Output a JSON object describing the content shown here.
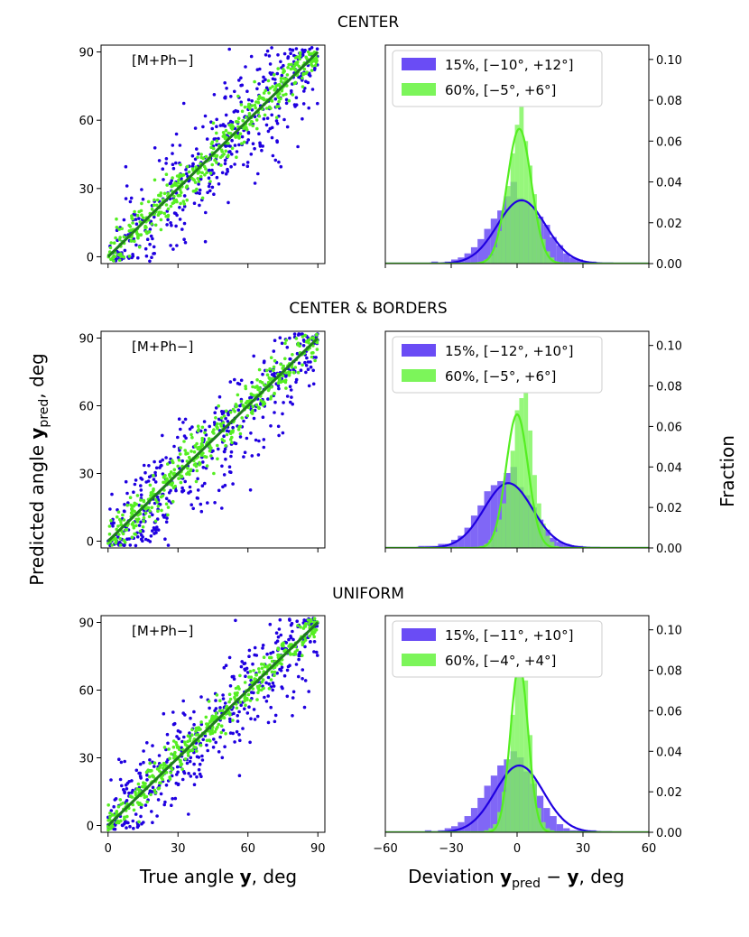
{
  "figure": {
    "ylabel_main": "Predicted angle ",
    "ylabel_bold": "y",
    "ylabel_sub": "pred",
    "ylabel_tail": ", deg",
    "ylabel_right": "Fraction",
    "xlabel_left_main": "True angle ",
    "xlabel_left_bold": "y",
    "xlabel_left_tail": ", deg",
    "xlabel_right_main": "Deviation ",
    "xlabel_right_bold1": "y",
    "xlabel_right_sub": "pred",
    "xlabel_right_minus": " − ",
    "xlabel_right_bold2": "y",
    "xlabel_right_tail": ", deg"
  },
  "colors": {
    "blue": "#1f00e0",
    "green": "#55ee22",
    "diag": "#1f7a1f",
    "hist_blue": "#6a4cf5",
    "hist_green": "#7cf55a"
  },
  "chart_data": [
    {
      "type": "scatter",
      "row_title": "CENTER",
      "annotation": "[M+Ph−]",
      "xlim": [
        -3,
        93
      ],
      "ylim": [
        -3,
        93
      ],
      "xticks": [
        0,
        30,
        60,
        90
      ],
      "yticks": [
        0,
        30,
        60,
        90
      ],
      "series": [
        {
          "color": "blue",
          "spread": 13,
          "seed": 11
        },
        {
          "color": "green",
          "spread": 5.5,
          "seed": 12
        }
      ],
      "diagonal": [
        [
          0,
          0
        ],
        [
          90,
          90
        ]
      ]
    },
    {
      "type": "bar",
      "xlim": [
        -60,
        60
      ],
      "ylim": [
        0,
        0.107
      ],
      "xticks": [
        -60,
        -30,
        0,
        30,
        60
      ],
      "yticks": [
        0.0,
        0.02,
        0.04,
        0.06,
        0.08,
        0.1
      ],
      "legend": [
        "15%, [−10°, +12°]",
        "60%, [−5°, +6°]"
      ],
      "series": [
        {
          "color": "blue",
          "mean": 2,
          "sigma": 11,
          "peak": 0.031,
          "bin_width": 3,
          "bins_start": -39,
          "values": [
            0.001,
            0,
            0.001,
            0.002,
            0.003,
            0.005,
            0.008,
            0.012,
            0.017,
            0.022,
            0.026,
            0.033,
            0.04,
            0.032,
            0.03,
            0.027,
            0.023,
            0.019,
            0.013,
            0.009,
            0.005,
            0.003,
            0.002,
            0.001,
            0.001,
            0
          ]
        },
        {
          "color": "green",
          "mean": 1,
          "sigma": 5.5,
          "peak": 0.066,
          "bin_width": 2,
          "bins_start": -17,
          "values": [
            0.001,
            0.002,
            0.004,
            0.008,
            0.016,
            0.026,
            0.038,
            0.054,
            0.068,
            0.077,
            0.06,
            0.048,
            0.034,
            0.022,
            0.012,
            0.006,
            0.003,
            0.001
          ]
        }
      ]
    },
    {
      "type": "scatter",
      "row_title": "CENTER & BORDERS",
      "annotation": "[M+Ph−]",
      "xlim": [
        -3,
        93
      ],
      "ylim": [
        -3,
        93
      ],
      "xticks": [
        0,
        30,
        60,
        90
      ],
      "yticks": [
        0,
        30,
        60,
        90
      ],
      "series": [
        {
          "color": "blue",
          "spread": 14,
          "seed": 21,
          "bias": -5
        },
        {
          "color": "green",
          "spread": 5.5,
          "seed": 22
        }
      ],
      "diagonal": [
        [
          0,
          0
        ],
        [
          90,
          90
        ]
      ]
    },
    {
      "type": "bar",
      "xlim": [
        -60,
        60
      ],
      "ylim": [
        0,
        0.107
      ],
      "xticks": [
        -60,
        -30,
        0,
        30,
        60
      ],
      "yticks": [
        0.0,
        0.02,
        0.04,
        0.06,
        0.08,
        0.1
      ],
      "legend": [
        "15%, [−12°, +10°]",
        "60%, [−5°, +6°]"
      ],
      "series": [
        {
          "color": "blue",
          "mean": -4,
          "sigma": 11,
          "peak": 0.032,
          "bin_width": 3,
          "bins_start": -45,
          "values": [
            0.001,
            0.001,
            0.001,
            0.002,
            0.002,
            0.004,
            0.006,
            0.01,
            0.016,
            0.021,
            0.028,
            0.031,
            0.033,
            0.037,
            0.04,
            0.03,
            0.026,
            0.02,
            0.014,
            0.009,
            0.005,
            0.003,
            0.002,
            0.001,
            0.001,
            0
          ]
        },
        {
          "color": "green",
          "mean": 0,
          "sigma": 5,
          "peak": 0.066,
          "bin_width": 2,
          "bins_start": -17,
          "values": [
            0.001,
            0.002,
            0.004,
            0.008,
            0.014,
            0.022,
            0.032,
            0.048,
            0.068,
            0.074,
            0.08,
            0.058,
            0.036,
            0.022,
            0.012,
            0.006,
            0.003,
            0.001
          ]
        }
      ]
    },
    {
      "type": "scatter",
      "row_title": "UNIFORM",
      "annotation": "[M+Ph−]",
      "xlim": [
        -3,
        93
      ],
      "ylim": [
        -3,
        93
      ],
      "xticks": [
        0,
        30,
        60,
        90
      ],
      "yticks": [
        0,
        30,
        60,
        90
      ],
      "series": [
        {
          "color": "blue",
          "spread": 12.5,
          "seed": 31
        },
        {
          "color": "green",
          "spread": 4.2,
          "seed": 32
        }
      ],
      "diagonal": [
        [
          0,
          0
        ],
        [
          90,
          90
        ]
      ]
    },
    {
      "type": "bar",
      "xlim": [
        -60,
        60
      ],
      "ylim": [
        0,
        0.107
      ],
      "xticks": [
        -60,
        -30,
        0,
        30,
        60
      ],
      "yticks": [
        0.0,
        0.02,
        0.04,
        0.06,
        0.08,
        0.1
      ],
      "xticklabels_visible": true,
      "legend": [
        "15%, [−11°, +10°]",
        "60%, [−4°, +4°]"
      ],
      "series": [
        {
          "color": "blue",
          "mean": 1,
          "sigma": 11,
          "peak": 0.033,
          "bin_width": 3,
          "bins_start": -42,
          "values": [
            0.001,
            0,
            0.001,
            0.002,
            0.003,
            0.005,
            0.008,
            0.012,
            0.017,
            0.023,
            0.028,
            0.033,
            0.036,
            0.04,
            0.037,
            0.03,
            0.024,
            0.018,
            0.012,
            0.008,
            0.004,
            0.002,
            0.001,
            0.001,
            0,
            0.001
          ]
        },
        {
          "color": "green",
          "mean": 1,
          "sigma": 4,
          "peak": 0.083,
          "bin_width": 2,
          "bins_start": -15,
          "values": [
            0.001,
            0.002,
            0.004,
            0.01,
            0.02,
            0.036,
            0.058,
            0.088,
            0.098,
            0.075,
            0.048,
            0.026,
            0.012,
            0.005,
            0.002,
            0.001
          ]
        }
      ]
    }
  ]
}
